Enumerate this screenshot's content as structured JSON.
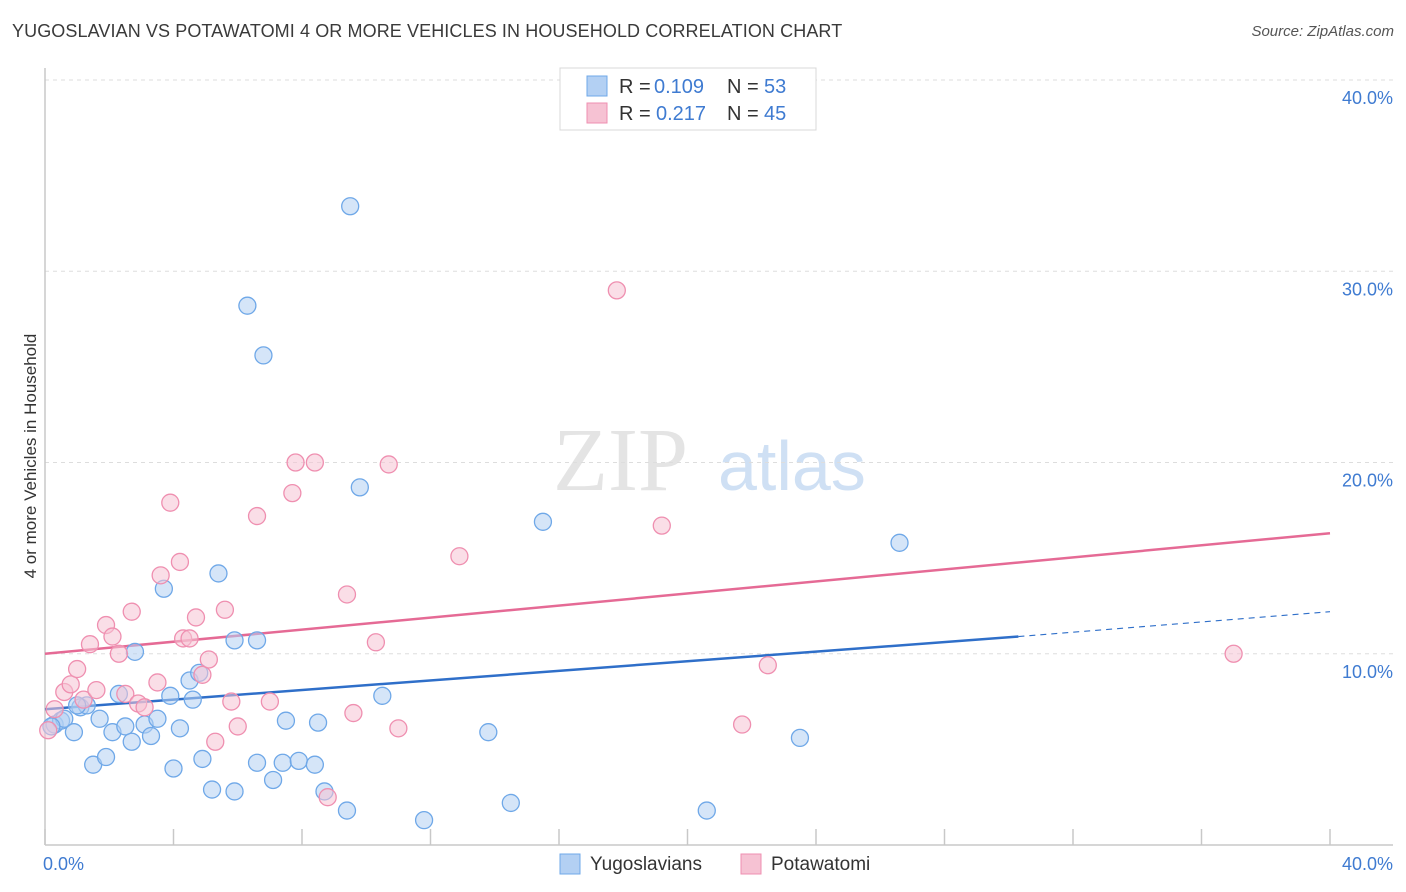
{
  "title": "YUGOSLAVIAN VS POTAWATOMI 4 OR MORE VEHICLES IN HOUSEHOLD CORRELATION CHART",
  "source": "Source: ZipAtlas.com",
  "watermark": {
    "zip": "ZIP",
    "atlas": "atlas"
  },
  "colors": {
    "blue": "#6fa8e8",
    "blue_fill": "#b3d0f3",
    "blue_line": "#2f6fc9",
    "pink": "#ef8fb0",
    "pink_fill": "#f6c2d3",
    "pink_line": "#e56a95",
    "tick": "#3f7bd1"
  },
  "chart_data": {
    "type": "scatter",
    "title": "YUGOSLAVIAN VS POTAWATOMI 4 OR MORE VEHICLES IN HOUSEHOLD CORRELATION CHART",
    "xlabel": "",
    "ylabel": "4 or more Vehicles in Household",
    "xlim": [
      0,
      40
    ],
    "ylim": [
      0,
      40
    ],
    "x_ticks": [
      "0.0%",
      "40.0%"
    ],
    "y_ticks": [
      {
        "value": 10,
        "label": "10.0%"
      },
      {
        "value": 20,
        "label": "20.0%"
      },
      {
        "value": 30,
        "label": "30.0%"
      },
      {
        "value": 40,
        "label": "40.0%"
      }
    ],
    "legend": [
      {
        "name": "Yugoslavians",
        "r_label": "R =",
        "r": "0.109",
        "n_label": "N =",
        "n": "53"
      },
      {
        "name": "Potawatomi",
        "r_label": "R =",
        "r": "0.217",
        "n_label": "N =",
        "n": "45"
      }
    ],
    "series": [
      {
        "name": "Yugoslavians",
        "trend": {
          "x0": 0,
          "y0": 7.1,
          "x1": 30.3,
          "y1": 10.9,
          "dash_x1": 40,
          "dash_y1": 12.2
        },
        "points": [
          [
            0.3,
            6.3
          ],
          [
            0.5,
            6.5
          ],
          [
            0.6,
            6.6
          ],
          [
            0.9,
            5.9
          ],
          [
            1.1,
            7.2
          ],
          [
            1.3,
            7.3
          ],
          [
            1.5,
            4.2
          ],
          [
            1.7,
            6.6
          ],
          [
            1.9,
            4.6
          ],
          [
            2.1,
            5.9
          ],
          [
            2.3,
            7.9
          ],
          [
            2.5,
            6.2
          ],
          [
            2.7,
            5.4
          ],
          [
            2.8,
            10.1
          ],
          [
            3.1,
            6.3
          ],
          [
            3.3,
            5.7
          ],
          [
            3.5,
            6.6
          ],
          [
            3.7,
            13.4
          ],
          [
            3.9,
            7.8
          ],
          [
            4.0,
            4.0
          ],
          [
            4.2,
            6.1
          ],
          [
            4.5,
            8.6
          ],
          [
            4.6,
            7.6
          ],
          [
            4.8,
            9.0
          ],
          [
            4.9,
            4.5
          ],
          [
            5.2,
            2.9
          ],
          [
            5.4,
            14.2
          ],
          [
            5.9,
            2.8
          ],
          [
            5.9,
            10.7
          ],
          [
            6.3,
            28.2
          ],
          [
            6.6,
            4.3
          ],
          [
            6.6,
            10.7
          ],
          [
            6.8,
            25.6
          ],
          [
            7.1,
            3.4
          ],
          [
            7.4,
            4.3
          ],
          [
            7.5,
            6.5
          ],
          [
            7.9,
            4.4
          ],
          [
            8.4,
            4.2
          ],
          [
            8.5,
            6.4
          ],
          [
            8.7,
            2.8
          ],
          [
            9.4,
            1.8
          ],
          [
            9.5,
            33.4
          ],
          [
            9.8,
            18.7
          ],
          [
            10.5,
            7.8
          ],
          [
            11.8,
            1.3
          ],
          [
            13.8,
            5.9
          ],
          [
            14.5,
            2.2
          ],
          [
            15.5,
            16.9
          ],
          [
            20.6,
            1.8
          ],
          [
            23.5,
            5.6
          ],
          [
            26.6,
            15.8
          ],
          [
            0.2,
            6.2
          ],
          [
            1.0,
            7.3
          ]
        ]
      },
      {
        "name": "Potawatomi",
        "trend": {
          "x0": 0,
          "y0": 10.0,
          "x1": 40,
          "y1": 16.3
        },
        "points": [
          [
            0.1,
            6.0
          ],
          [
            0.3,
            7.1
          ],
          [
            0.6,
            8.0
          ],
          [
            0.8,
            8.4
          ],
          [
            1.0,
            9.2
          ],
          [
            1.2,
            7.6
          ],
          [
            1.4,
            10.5
          ],
          [
            1.6,
            8.1
          ],
          [
            1.9,
            11.5
          ],
          [
            2.1,
            10.9
          ],
          [
            2.3,
            10.0
          ],
          [
            2.5,
            7.9
          ],
          [
            2.7,
            12.2
          ],
          [
            2.9,
            7.4
          ],
          [
            3.1,
            7.2
          ],
          [
            3.5,
            8.5
          ],
          [
            3.6,
            14.1
          ],
          [
            3.9,
            17.9
          ],
          [
            4.2,
            14.8
          ],
          [
            4.3,
            10.8
          ],
          [
            4.5,
            10.8
          ],
          [
            4.7,
            11.9
          ],
          [
            4.9,
            8.9
          ],
          [
            5.1,
            9.7
          ],
          [
            5.3,
            5.4
          ],
          [
            5.6,
            12.3
          ],
          [
            5.8,
            7.5
          ],
          [
            6.0,
            6.2
          ],
          [
            6.6,
            17.2
          ],
          [
            7.0,
            7.5
          ],
          [
            7.7,
            18.4
          ],
          [
            7.8,
            20.0
          ],
          [
            8.4,
            20.0
          ],
          [
            8.8,
            2.5
          ],
          [
            9.4,
            13.1
          ],
          [
            9.6,
            6.9
          ],
          [
            10.3,
            10.6
          ],
          [
            10.7,
            19.9
          ],
          [
            11.0,
            6.1
          ],
          [
            12.9,
            15.1
          ],
          [
            17.8,
            29.0
          ],
          [
            19.2,
            16.7
          ],
          [
            21.7,
            6.3
          ],
          [
            22.5,
            9.4
          ],
          [
            37.0,
            10.0
          ]
        ]
      }
    ]
  }
}
